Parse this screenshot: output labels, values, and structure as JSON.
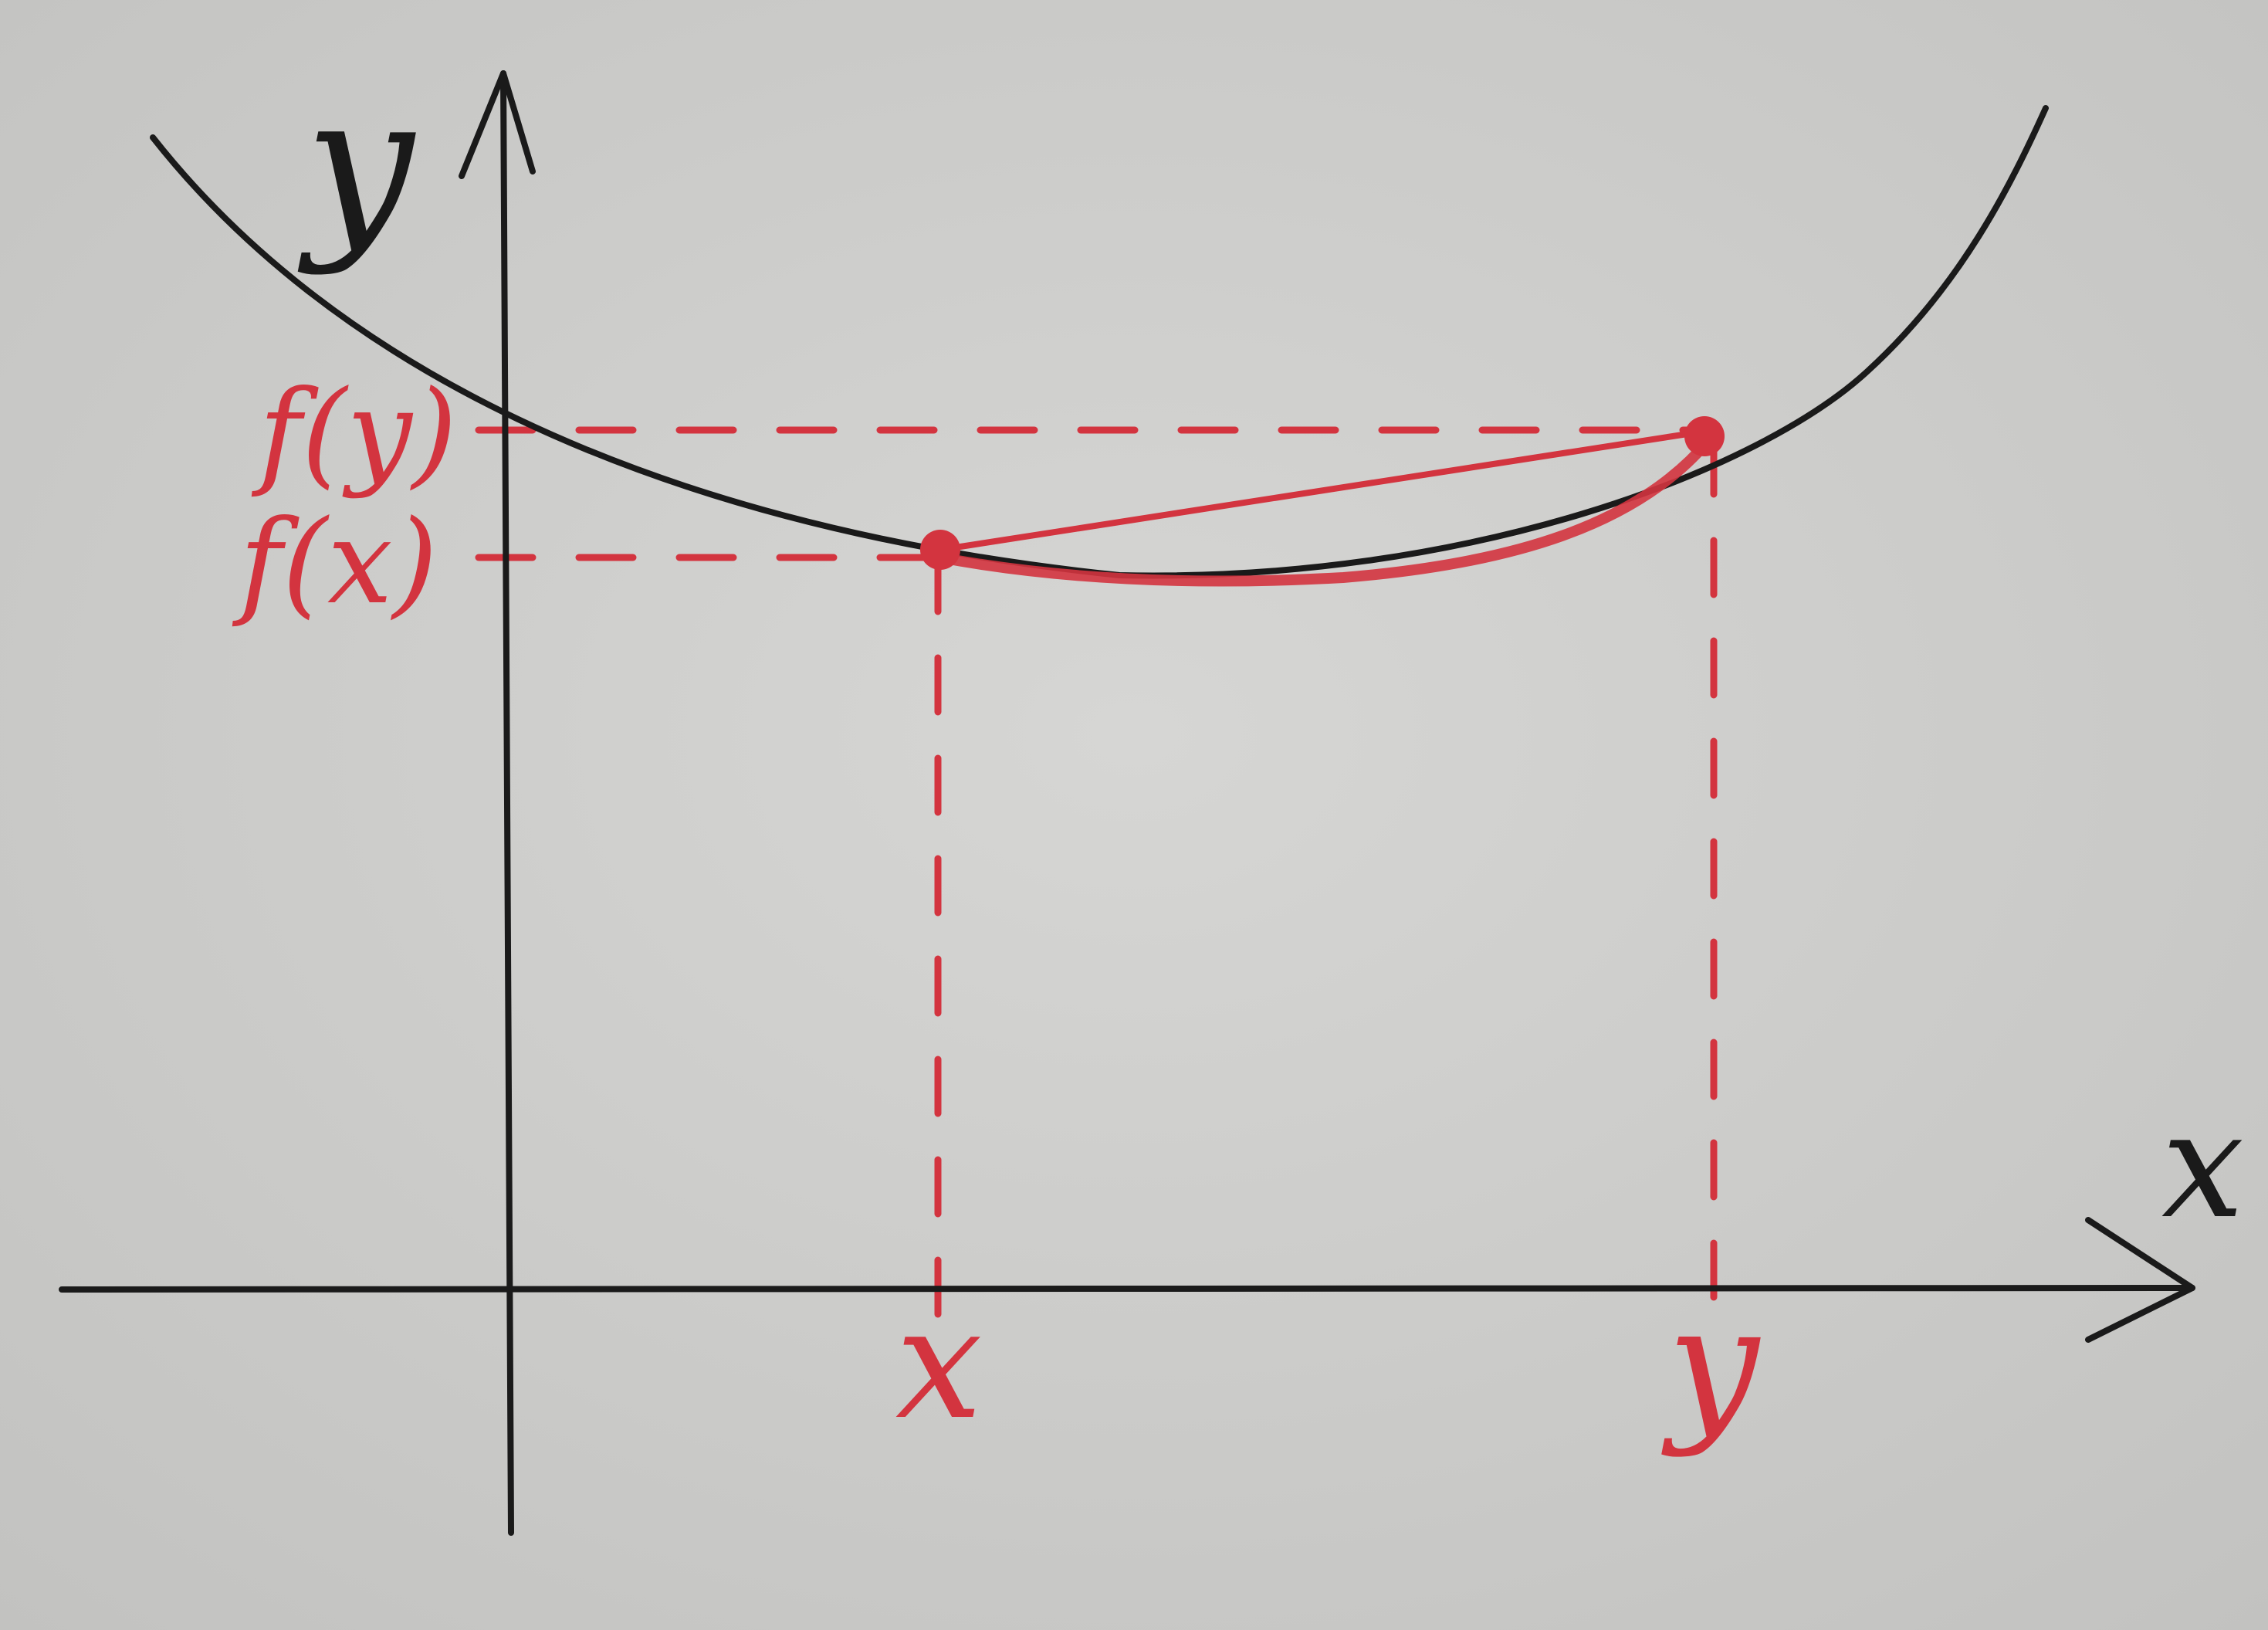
{
  "axes": {
    "y_label": "y",
    "x_label": "x"
  },
  "labels": {
    "f_y": "f(y)",
    "f_x": "f(x)",
    "point_x": "x",
    "point_y": "y"
  },
  "colors": {
    "paper": "#cfcfcd",
    "ink": "#1a1a1a",
    "accent": "#d3343f"
  }
}
